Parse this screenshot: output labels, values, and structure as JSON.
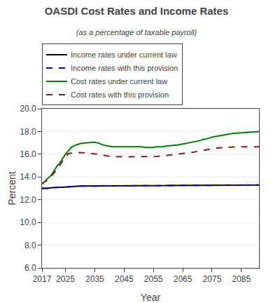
{
  "chart_data": {
    "type": "line",
    "title": "OASDI Cost Rates and Income Rates",
    "subtitle": "(as a percentage of taxable payroll)",
    "xlabel": "Year",
    "ylabel": "Percent",
    "xlim": [
      2017,
      2091
    ],
    "ylim": [
      6.0,
      20.0
    ],
    "xticks": [
      2017,
      2025,
      2035,
      2045,
      2055,
      2065,
      2075,
      2085
    ],
    "yticks": [
      {
        "value": 6.0,
        "label": "6.0"
      },
      {
        "value": 8.0,
        "label": "8.0"
      },
      {
        "value": 10.0,
        "label": "10.0"
      },
      {
        "value": 12.0,
        "label": "12.0"
      },
      {
        "value": 14.0,
        "label": "14.0"
      },
      {
        "value": 16.0,
        "label": "16.0"
      },
      {
        "value": 18.0,
        "label": "18.0"
      },
      {
        "value": 20.0,
        "label": "20.0"
      }
    ],
    "grid": "y",
    "legend": "top",
    "x": [
      2017,
      2018,
      2019,
      2020,
      2021,
      2022,
      2023,
      2024,
      2025,
      2026,
      2027,
      2028,
      2029,
      2030,
      2031,
      2032,
      2033,
      2034,
      2035,
      2036,
      2037,
      2038,
      2039,
      2040,
      2041,
      2042,
      2043,
      2044,
      2045,
      2046,
      2047,
      2048,
      2049,
      2050,
      2051,
      2052,
      2053,
      2054,
      2055,
      2056,
      2057,
      2058,
      2059,
      2060,
      2061,
      2062,
      2063,
      2064,
      2065,
      2066,
      2067,
      2068,
      2069,
      2070,
      2071,
      2072,
      2073,
      2074,
      2075,
      2076,
      2077,
      2078,
      2079,
      2080,
      2081,
      2082,
      2083,
      2084,
      2085,
      2086,
      2087,
      2088,
      2089,
      2090,
      2091
    ],
    "series": [
      {
        "name": "Income rates under current law",
        "color": "#000000",
        "line_style": "solid",
        "values": [
          13.0,
          13.0,
          13.0,
          13.05,
          13.08,
          13.1,
          13.1,
          13.1,
          13.12,
          13.15,
          13.17,
          13.18,
          13.18,
          13.2,
          13.2,
          13.2,
          13.22,
          13.22,
          13.22,
          13.22,
          13.22,
          13.22,
          13.22,
          13.22,
          13.22,
          13.22,
          13.22,
          13.23,
          13.23,
          13.23,
          13.23,
          13.23,
          13.23,
          13.23,
          13.23,
          13.23,
          13.23,
          13.23,
          13.23,
          13.24,
          13.24,
          13.24,
          13.24,
          13.25,
          13.25,
          13.25,
          13.25,
          13.25,
          13.25,
          13.26,
          13.26,
          13.26,
          13.26,
          13.26,
          13.26,
          13.27,
          13.27,
          13.27,
          13.27,
          13.27,
          13.27,
          13.27,
          13.28,
          13.28,
          13.28,
          13.28,
          13.28,
          13.28,
          13.28,
          13.28,
          13.29,
          13.29,
          13.29,
          13.29,
          13.3
        ]
      },
      {
        "name": "Income rates with this provision",
        "color": "#0000cc",
        "line_style": "dashed",
        "values": [
          13.0,
          13.0,
          13.0,
          13.05,
          13.08,
          13.1,
          13.1,
          13.1,
          13.12,
          13.15,
          13.17,
          13.18,
          13.18,
          13.2,
          13.2,
          13.2,
          13.22,
          13.22,
          13.22,
          13.22,
          13.22,
          13.22,
          13.22,
          13.22,
          13.22,
          13.22,
          13.22,
          13.23,
          13.23,
          13.23,
          13.23,
          13.23,
          13.23,
          13.23,
          13.23,
          13.23,
          13.23,
          13.23,
          13.23,
          13.24,
          13.24,
          13.24,
          13.24,
          13.25,
          13.25,
          13.25,
          13.25,
          13.25,
          13.25,
          13.26,
          13.26,
          13.26,
          13.26,
          13.26,
          13.26,
          13.27,
          13.27,
          13.27,
          13.27,
          13.27,
          13.27,
          13.27,
          13.28,
          13.28,
          13.28,
          13.28,
          13.28,
          13.28,
          13.28,
          13.28,
          13.29,
          13.29,
          13.29,
          13.29,
          13.3
        ]
      },
      {
        "name": "Cost rates under current law",
        "color": "#008000",
        "line_style": "solid",
        "values": [
          13.4,
          13.6,
          13.9,
          14.1,
          14.5,
          14.9,
          15.2,
          15.6,
          16.0,
          16.3,
          16.6,
          16.75,
          16.85,
          16.93,
          16.98,
          17.0,
          17.05,
          17.05,
          17.05,
          17.0,
          16.9,
          16.8,
          16.75,
          16.7,
          16.65,
          16.65,
          16.65,
          16.65,
          16.65,
          16.65,
          16.65,
          16.65,
          16.65,
          16.65,
          16.65,
          16.6,
          16.6,
          16.6,
          16.6,
          16.65,
          16.65,
          16.65,
          16.7,
          16.75,
          16.75,
          16.8,
          16.8,
          16.85,
          16.9,
          16.95,
          17.0,
          17.05,
          17.1,
          17.15,
          17.2,
          17.3,
          17.35,
          17.4,
          17.5,
          17.55,
          17.6,
          17.65,
          17.7,
          17.75,
          17.8,
          17.82,
          17.84,
          17.86,
          17.88,
          17.9,
          17.92,
          17.94,
          17.96,
          17.98,
          18.0
        ]
      },
      {
        "name": "Cost rates with this provision",
        "color": "#8b1a1a",
        "line_style": "dashed",
        "values": [
          13.4,
          13.55,
          13.75,
          14.0,
          14.3,
          14.65,
          15.0,
          15.4,
          15.78,
          16.05,
          16.1,
          16.13,
          16.15,
          16.15,
          16.13,
          16.1,
          16.08,
          16.05,
          16.05,
          16.0,
          15.95,
          15.9,
          15.85,
          15.82,
          15.8,
          15.78,
          15.78,
          15.77,
          15.77,
          15.77,
          15.77,
          15.77,
          15.77,
          15.77,
          15.77,
          15.78,
          15.78,
          15.78,
          15.78,
          15.8,
          15.82,
          15.85,
          15.88,
          15.9,
          15.92,
          15.95,
          15.97,
          16.0,
          16.05,
          16.1,
          16.12,
          16.15,
          16.2,
          16.25,
          16.3,
          16.35,
          16.4,
          16.45,
          16.5,
          16.52,
          16.55,
          16.57,
          16.6,
          16.63,
          16.65,
          16.65,
          16.65,
          16.65,
          16.65,
          16.65,
          16.65,
          16.65,
          16.65,
          16.65,
          16.65
        ]
      }
    ]
  }
}
